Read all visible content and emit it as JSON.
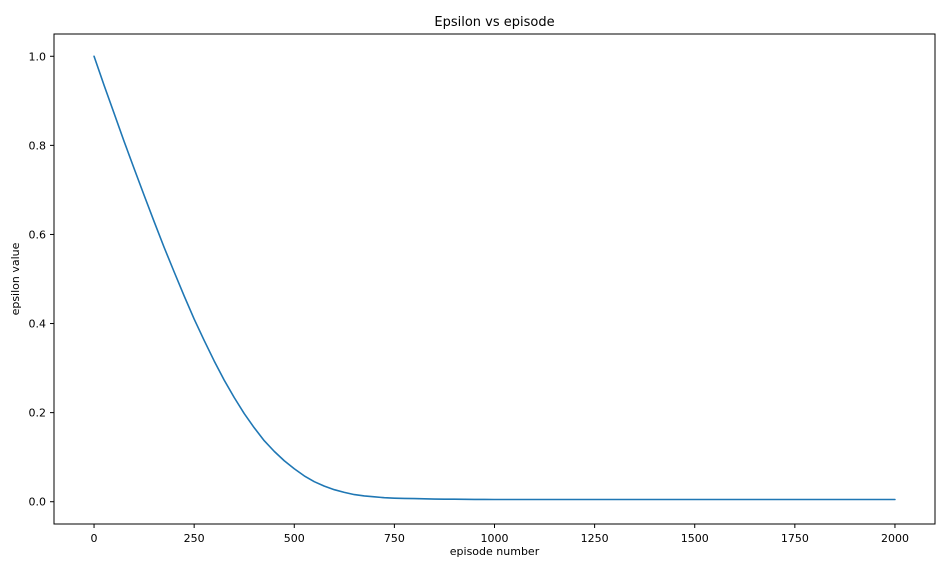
{
  "chart_data": {
    "type": "line",
    "title": "Epsilon vs episode",
    "xlabel": "episode number",
    "ylabel": "epsilon value",
    "xlim": [
      -100,
      2100
    ],
    "ylim": [
      -0.05,
      1.05
    ],
    "xticks": [
      0,
      250,
      500,
      750,
      1000,
      1250,
      1500,
      1750,
      2000
    ],
    "yticks": [
      0.0,
      0.2,
      0.4,
      0.6,
      0.8,
      1.0
    ],
    "xtick_labels": [
      "0",
      "250",
      "500",
      "750",
      "1000",
      "1250",
      "1500",
      "1750",
      "2000"
    ],
    "ytick_labels": [
      "0.0",
      "0.2",
      "0.4",
      "0.6",
      "0.8",
      "1.0"
    ],
    "grid": false,
    "series": [
      {
        "color": "#1f77b4",
        "x": [
          0,
          25,
          50,
          75,
          100,
          125,
          150,
          175,
          200,
          225,
          250,
          275,
          300,
          325,
          350,
          375,
          400,
          425,
          450,
          475,
          500,
          525,
          550,
          575,
          600,
          625,
          650,
          675,
          700,
          725,
          750,
          775,
          800,
          825,
          850,
          875,
          900,
          925,
          950,
          975,
          1000,
          1250,
          1500,
          1750,
          2000
        ],
        "y": [
          1.0,
          0.935,
          0.872,
          0.809,
          0.748,
          0.688,
          0.629,
          0.571,
          0.516,
          0.462,
          0.41,
          0.362,
          0.316,
          0.273,
          0.234,
          0.198,
          0.166,
          0.137,
          0.113,
          0.092,
          0.074,
          0.058,
          0.045,
          0.035,
          0.027,
          0.021,
          0.016,
          0.013,
          0.011,
          0.009,
          0.008,
          0.0075,
          0.007,
          0.0065,
          0.006,
          0.0058,
          0.0056,
          0.0054,
          0.0052,
          0.0051,
          0.005,
          0.005,
          0.005,
          0.005,
          0.005
        ]
      }
    ]
  }
}
